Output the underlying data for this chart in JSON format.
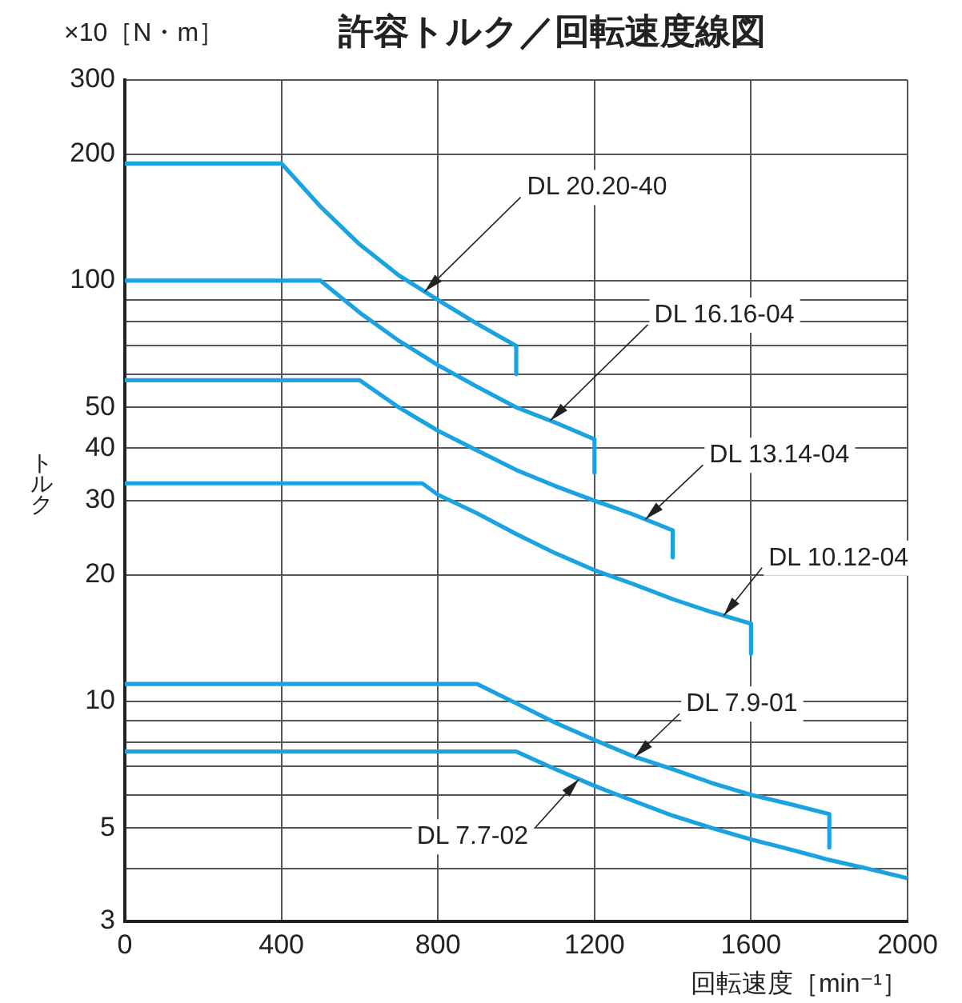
{
  "chart_data": {
    "type": "line",
    "title": "許容トルク／回転速度線図",
    "xlabel": "回転速度［min⁻¹］",
    "ylabel": "トルク",
    "annotations": [
      "×10［N・m］"
    ],
    "log": true,
    "grid": true,
    "xlim": [
      0,
      2000
    ],
    "xticks": [
      0,
      400,
      800,
      1200,
      1600,
      2000
    ],
    "ylim": [
      3,
      300
    ],
    "yticks": [
      3,
      {
        "value": 4,
        "label": null
      },
      5,
      {
        "value": 6,
        "label": null
      },
      {
        "value": 7,
        "label": null
      },
      {
        "value": 8,
        "label": null
      },
      {
        "value": 9,
        "label": null
      },
      10,
      20,
      30,
      40,
      50,
      {
        "value": 60,
        "label": null
      },
      {
        "value": 70,
        "label": null
      },
      {
        "value": 80,
        "label": null
      },
      {
        "value": 90,
        "label": null
      },
      100,
      200,
      300
    ],
    "series": [
      {
        "name": "DL 20.20-40",
        "color": "#1aa3e0",
        "x": [
          0,
          400,
          500,
          600,
          700,
          800,
          900,
          1000,
          1000
        ],
        "values": [
          190,
          190,
          150,
          122,
          103,
          90,
          79,
          70,
          60
        ]
      },
      {
        "name": "DL 16.16-04",
        "color": "#1aa3e0",
        "x": [
          0,
          500,
          600,
          700,
          800,
          900,
          1000,
          1100,
          1200,
          1200
        ],
        "values": [
          100,
          100,
          84,
          72,
          63,
          56,
          50,
          46,
          42,
          35
        ]
      },
      {
        "name": "DL 13.14-04",
        "color": "#1aa3e0",
        "x": [
          0,
          600,
          700,
          800,
          900,
          1000,
          1100,
          1200,
          1300,
          1400,
          1400
        ],
        "values": [
          58,
          58,
          50,
          44,
          39.5,
          35.5,
          32.5,
          30,
          27.8,
          25.5,
          22
        ]
      },
      {
        "name": "DL 10.12-04",
        "color": "#1aa3e0",
        "x": [
          0,
          760,
          800,
          900,
          1000,
          1100,
          1200,
          1300,
          1400,
          1500,
          1600,
          1600
        ],
        "values": [
          33,
          33,
          31,
          28,
          25,
          22.5,
          20.5,
          19,
          17.5,
          16.3,
          15.3,
          13
        ]
      },
      {
        "name": "DL 7.9-01",
        "color": "#1aa3e0",
        "x": [
          0,
          900,
          1000,
          1100,
          1200,
          1300,
          1400,
          1500,
          1600,
          1700,
          1800,
          1800
        ],
        "values": [
          11,
          11,
          9.9,
          8.9,
          8.1,
          7.4,
          6.9,
          6.4,
          6,
          5.7,
          5.4,
          4.5
        ]
      },
      {
        "name": "DL 7.7-02",
        "color": "#1aa3e0",
        "x": [
          0,
          1000,
          1100,
          1200,
          1300,
          1400,
          1500,
          1600,
          1700,
          1800,
          1900,
          2000
        ],
        "values": [
          7.6,
          7.6,
          6.9,
          6.3,
          5.8,
          5.35,
          5,
          4.7,
          4.45,
          4.2,
          4,
          3.8
        ]
      }
    ]
  }
}
